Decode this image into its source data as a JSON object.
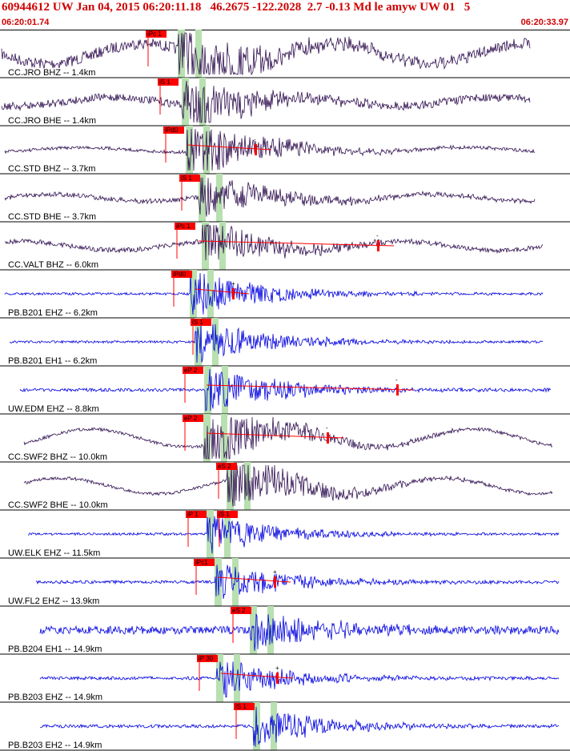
{
  "header": {
    "title": "60944612 UW Jan 04, 2015 06:20:11.18   46.2675 -122.2028  2.7 -0.13 Md le amyw UW 01   5",
    "start_time": "06:20:01.74",
    "end_time": "06:20:33.97"
  },
  "colors": {
    "accent": "#d00000",
    "short_period": "#301050",
    "broadband": "#0000e0",
    "pick_box": "#ff0000",
    "window": "#b8e0b0"
  },
  "traces": [
    {
      "label": "CC.JRO BHZ -- 1.4km",
      "color": "#301050",
      "pick": "iPc 1",
      "pick2": "",
      "marker": ""
    },
    {
      "label": "CC.JRO BHE -- 1.4km",
      "color": "#301050",
      "pick": "iS 1",
      "pick2": "",
      "marker": ""
    },
    {
      "label": "CC.STD BHZ -- 3.7km",
      "color": "#301050",
      "pick": "iPd0",
      "pick2": "",
      "marker": "-"
    },
    {
      "label": "CC.STD BHE -- 3.7km",
      "color": "#301050",
      "pick": "iS 1",
      "pick2": "",
      "marker": ""
    },
    {
      "label": "CC.VALT BHZ -- 6.0km",
      "color": "#301050",
      "pick": "iPc 1",
      "pick2": "",
      "marker": "-"
    },
    {
      "label": "PB.B201 EHZ -- 6.2km",
      "color": "#0000e0",
      "pick": "iPd0",
      "pick2": "",
      "marker": "+"
    },
    {
      "label": "PB.B201 EH1 -- 6.2km",
      "color": "#0000e0",
      "pick": "iS 1",
      "pick2": "",
      "marker": ""
    },
    {
      "label": "UW.EDM EHZ -- 8.8km",
      "color": "#0000e0",
      "pick": "eP 2",
      "pick2": "",
      "marker": "-"
    },
    {
      "label": "CC.SWF2 BHZ -- 10.0km",
      "color": "#301050",
      "pick": "eP 2",
      "pick2": "",
      "marker": "-"
    },
    {
      "label": "CC.SWF2 BHE -- 10.0km",
      "color": "#301050",
      "pick": "eS 2",
      "pick2": "",
      "marker": ""
    },
    {
      "label": "UW.ELK EHZ -- 11.5km",
      "color": "#0000e0",
      "pick": "iP 1",
      "pick2": "iS 1",
      "marker": ""
    },
    {
      "label": "UW.FL2 EHZ -- 13.9km",
      "color": "#0000e0",
      "pick": "iPc1",
      "pick2": "",
      "marker": "+"
    },
    {
      "label": "PB.B204 EH1 -- 14.9km",
      "color": "#0000e0",
      "pick": "eS 2",
      "pick2": "",
      "marker": ""
    },
    {
      "label": "PB.B203 EHZ -- 14.9km",
      "color": "#0000e0",
      "pick": "iP 30",
      "pick2": "",
      "marker": "+"
    },
    {
      "label": "PB.B203 EH2 -- 14.9km",
      "color": "#0000e0",
      "pick": "iS 1",
      "pick2": "",
      "marker": ""
    }
  ]
}
